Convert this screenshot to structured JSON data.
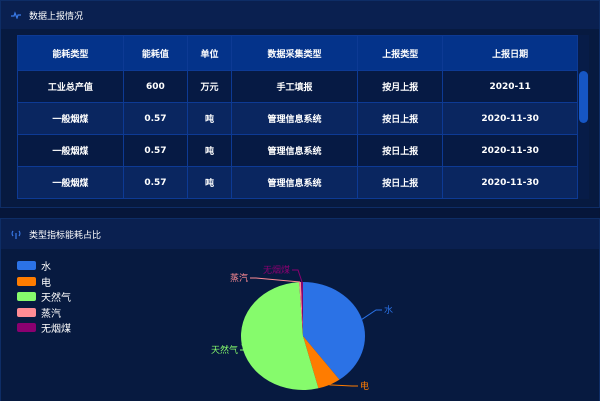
{
  "panel1": {
    "title": "数据上报情况",
    "icon": "pulse-icon",
    "columns": [
      "能耗类型",
      "能耗值",
      "单位",
      "数据采集类型",
      "上报类型",
      "上报日期"
    ],
    "rows": [
      [
        "工业总产值",
        "600",
        "万元",
        "手工填报",
        "按月上报",
        "2020-11"
      ],
      [
        "一般烟煤",
        "0.57",
        "吨",
        "管理信息系统",
        "按日上报",
        "2020-11-30"
      ],
      [
        "一般烟煤",
        "0.57",
        "吨",
        "管理信息系统",
        "按日上报",
        "2020-11-30"
      ],
      [
        "一般烟煤",
        "0.57",
        "吨",
        "管理信息系统",
        "按日上报",
        "2020-11-30"
      ]
    ]
  },
  "panel2": {
    "title": "类型指标能耗占比",
    "icon": "antenna-icon"
  },
  "chart_data": {
    "type": "pie",
    "legend_placement": "top-left",
    "categories": [
      "水",
      "电",
      "天然气",
      "蒸汽",
      "无烟煤"
    ],
    "values": [
      40,
      6,
      53,
      0.5,
      0.5
    ],
    "colors": [
      "#2b72e6",
      "#ff7c00",
      "#86fb6c",
      "#ff8c94",
      "#8a0070"
    ]
  }
}
